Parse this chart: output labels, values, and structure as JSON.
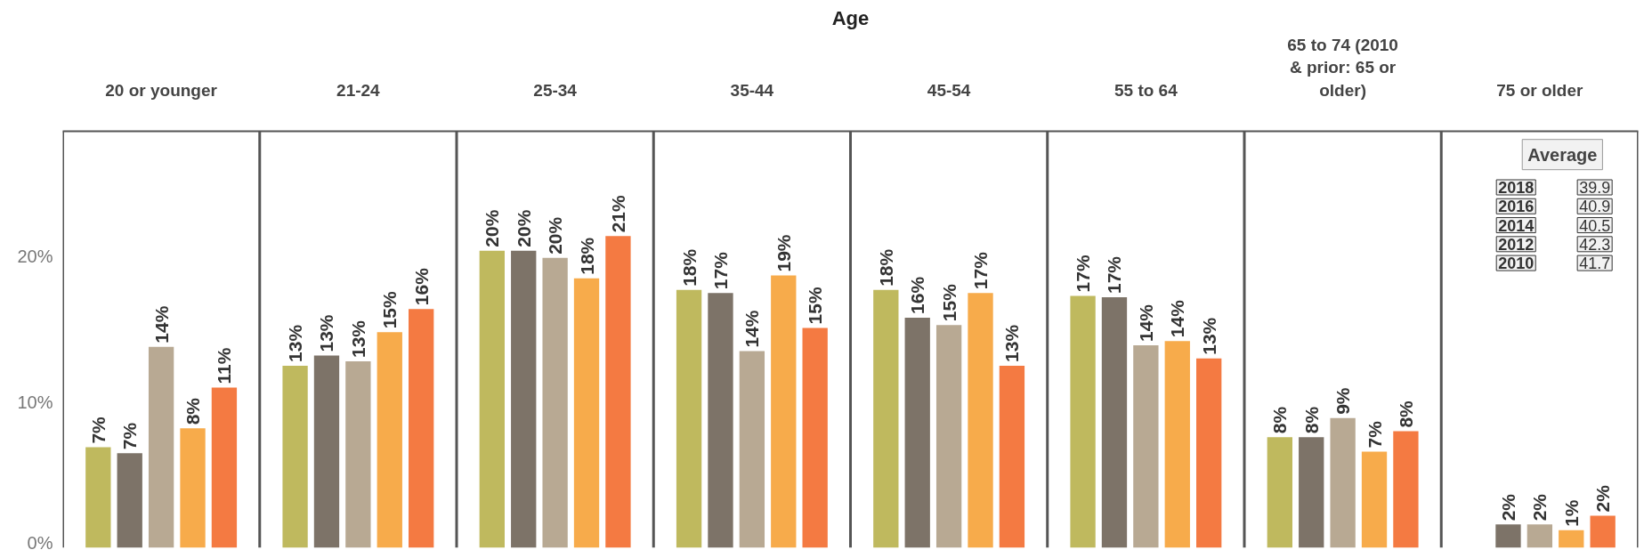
{
  "chart_data": {
    "type": "bar",
    "title": "Age",
    "categories": [
      "20 or younger",
      "21-24",
      "25-34",
      "35-44",
      "45-54",
      "55 to 64",
      "65 to 74 (2010 & prior: 65 or older)",
      "75 or older"
    ],
    "series": [
      {
        "color": "#bfb95e",
        "values": [
          6.9,
          12.5,
          20.4,
          17.7,
          17.7,
          17.3,
          7.6,
          null
        ],
        "value_labels": [
          "7%",
          "13%",
          "20%",
          "18%",
          "18%",
          "17%",
          "8%",
          null
        ]
      },
      {
        "color": "#7d7368",
        "values": [
          6.5,
          13.2,
          20.4,
          17.5,
          15.8,
          17.2,
          7.6,
          1.6
        ],
        "value_labels": [
          "7%",
          "13%",
          "20%",
          "17%",
          "16%",
          "17%",
          "8%",
          "2%"
        ]
      },
      {
        "color": "#b8a993",
        "values": [
          13.8,
          12.8,
          19.9,
          13.5,
          15.3,
          13.9,
          8.9,
          1.6
        ],
        "value_labels": [
          "14%",
          "13%",
          "20%",
          "14%",
          "15%",
          "14%",
          "9%",
          "2%"
        ]
      },
      {
        "color": "#f7ab4b",
        "values": [
          8.2,
          14.8,
          18.5,
          18.7,
          17.5,
          14.2,
          6.6,
          1.2
        ],
        "value_labels": [
          "8%",
          "15%",
          "18%",
          "19%",
          "17%",
          "14%",
          "7%",
          "1%"
        ]
      },
      {
        "color": "#f47a42",
        "values": [
          11.0,
          16.4,
          21.4,
          15.1,
          12.5,
          13.0,
          8.0,
          2.2
        ],
        "value_labels": [
          "11%",
          "16%",
          "21%",
          "15%",
          "13%",
          "13%",
          "8%",
          "2%"
        ]
      }
    ],
    "ylim": [
      0,
      28.6
    ],
    "yticks": [
      {
        "value": 0,
        "label": "0%"
      },
      {
        "value": 10,
        "label": "10%"
      },
      {
        "value": 20,
        "label": "20%"
      }
    ],
    "grid": false,
    "annotations": [
      "Average",
      "2018",
      "39.9",
      "2016",
      "40.9",
      "2014",
      "40.5",
      "2012",
      "42.3",
      "2010",
      "41.7"
    ]
  }
}
